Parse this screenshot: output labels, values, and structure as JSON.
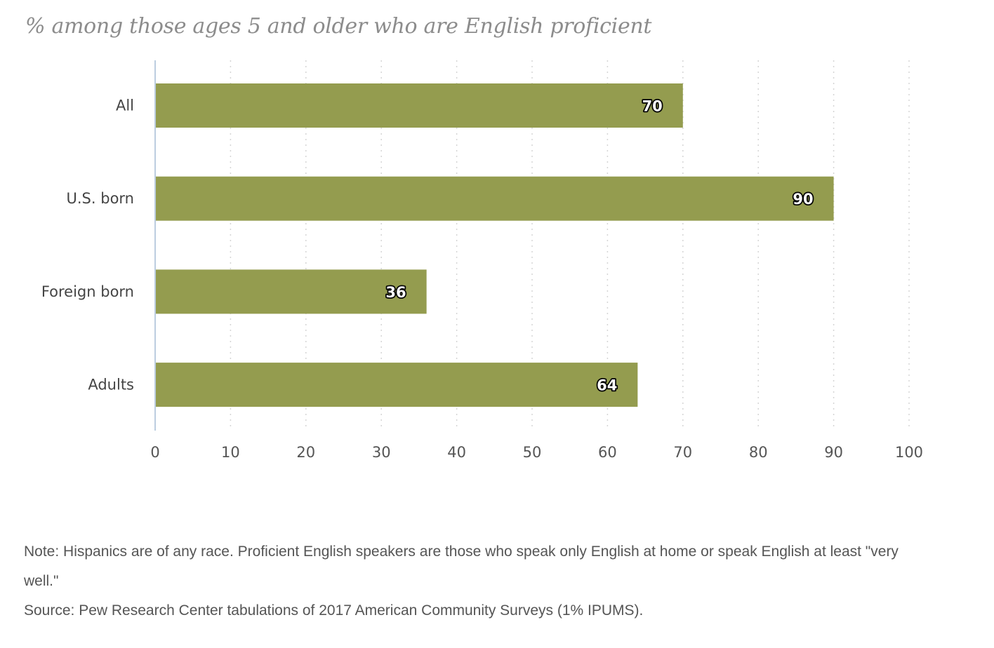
{
  "subtitle": "% among those ages 5 and older who are English proficient",
  "note": "Note: Hispanics are of any race. Proficient English speakers are those who speak only English at home or speak English at least \"very well.\"",
  "source": "Source: Pew Research Center tabulations of 2017 American Community Surveys (1% IPUMS).",
  "colors": {
    "bar": "#949c4f",
    "axis": "#bccde0",
    "grid": "#d5d5d5"
  },
  "chart_data": {
    "type": "bar",
    "orientation": "horizontal",
    "title": "% among those ages 5 and older who are English proficient",
    "categories": [
      "All",
      "U.S. born",
      "Foreign born",
      "Adults"
    ],
    "values": [
      70,
      90,
      36,
      64
    ],
    "xlim": [
      0,
      100
    ],
    "xticks": [
      0,
      10,
      20,
      30,
      40,
      50,
      60,
      70,
      80,
      90,
      100
    ],
    "xlabel": "",
    "ylabel": "",
    "grid": true,
    "legend": "none"
  }
}
